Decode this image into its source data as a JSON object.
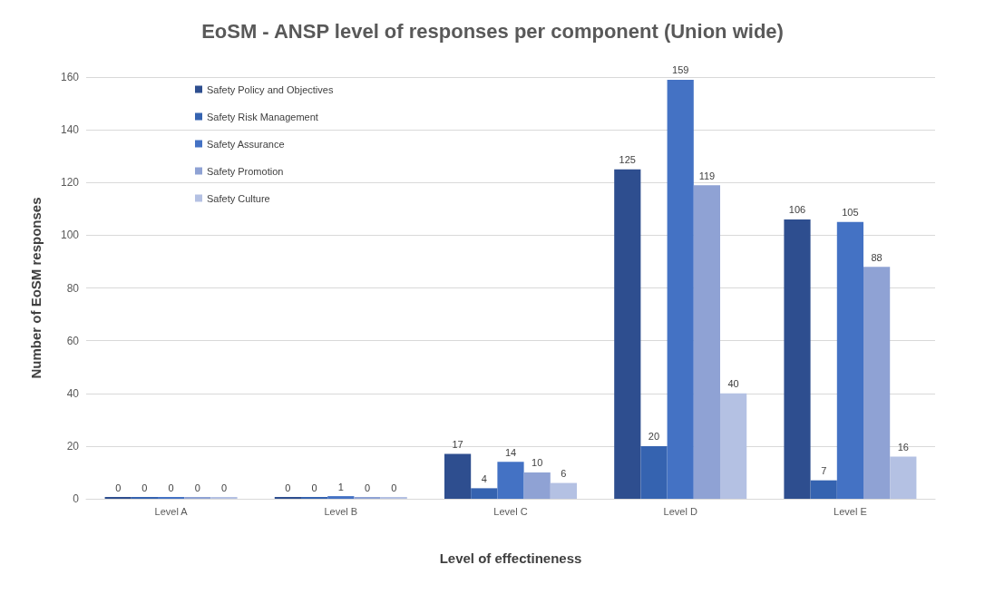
{
  "chart_data": {
    "type": "bar",
    "title": "EoSM - ANSP level of responses per component (Union wide)",
    "xlabel": "Level of effectineness",
    "ylabel": "Number of EoSM responses",
    "categories": [
      "Level A",
      "Level B",
      "Level C",
      "Level D",
      "Level E"
    ],
    "series": [
      {
        "name": "Safety Policy and Objectives",
        "color": "#2e4e8f",
        "values": [
          0,
          0,
          17,
          125,
          106
        ]
      },
      {
        "name": "Safety Risk Management",
        "color": "#3563b0",
        "values": [
          0,
          0,
          4,
          20,
          7
        ]
      },
      {
        "name": "Safety Assurance",
        "color": "#4472c4",
        "values": [
          0,
          1,
          14,
          159,
          105
        ]
      },
      {
        "name": "Safety Promotion",
        "color": "#8fa2d4",
        "values": [
          0,
          0,
          10,
          119,
          88
        ]
      },
      {
        "name": "Safety Culture",
        "color": "#b4c1e3",
        "values": [
          0,
          0,
          6,
          40,
          16
        ]
      }
    ],
    "ylim": [
      0,
      160
    ],
    "yticks": [
      0,
      20,
      40,
      60,
      80,
      100,
      120,
      140,
      160
    ],
    "grid": "y",
    "legend": "top left",
    "data_labels": true
  }
}
